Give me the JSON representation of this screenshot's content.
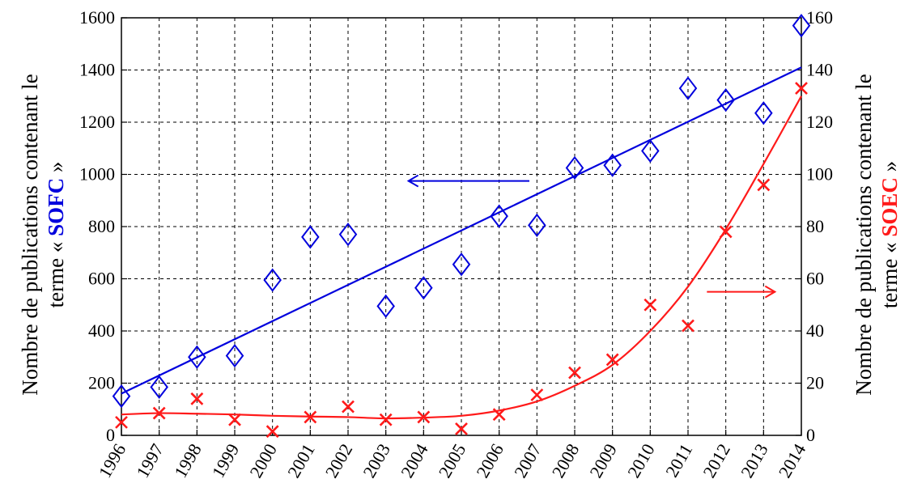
{
  "chart_data": {
    "type": "scatter",
    "x": [
      1996,
      1997,
      1998,
      1999,
      2000,
      2001,
      2002,
      2003,
      2004,
      2005,
      2006,
      2007,
      2008,
      2009,
      2010,
      2011,
      2012,
      2013,
      2014
    ],
    "x_ticks": [
      "1996",
      "1997",
      "1998",
      "1999",
      "2000",
      "2001",
      "2002",
      "2003",
      "2004",
      "2005",
      "2006",
      "2007",
      "2008",
      "2009",
      "2010",
      "2011",
      "2012",
      "2013",
      "2014"
    ],
    "y_left": {
      "range": [
        0,
        1600
      ],
      "ticks": [
        0,
        200,
        400,
        600,
        800,
        1000,
        1200,
        1400,
        1600
      ],
      "label_line1": "Nombre de publications contenant  le",
      "label_pre": "terme « ",
      "label_term": "SOFC",
      "label_post": " »"
    },
    "y_right": {
      "range": [
        0,
        160
      ],
      "ticks": [
        0,
        20,
        40,
        60,
        80,
        100,
        120,
        140,
        160
      ],
      "label_line1": "Nombre de publications contenant  le",
      "label_pre": "terme « ",
      "label_term": "SOEC",
      "label_post": " »"
    },
    "series": [
      {
        "axis": "left",
        "marker": "diamond",
        "color": "#0000dd",
        "values": [
          150,
          185,
          300,
          305,
          595,
          760,
          770,
          495,
          565,
          655,
          840,
          805,
          1025,
          1035,
          1090,
          1330,
          1285,
          1235,
          1570
        ],
        "trend_start": [
          1996,
          160
        ],
        "trend_end": [
          2014,
          1410
        ]
      },
      {
        "axis": "right",
        "marker": "cross",
        "color": "#ff1a1a",
        "values": [
          5,
          8.5,
          14,
          6,
          1.5,
          7,
          11,
          6,
          7,
          2.5,
          8,
          15.5,
          24,
          29,
          50,
          42,
          78,
          96,
          133
        ],
        "trend": [
          [
            1996,
            8
          ],
          [
            1997,
            8.5
          ],
          [
            1998,
            8.3
          ],
          [
            1999,
            8
          ],
          [
            2000,
            7.5
          ],
          [
            2001,
            7.2
          ],
          [
            2002,
            7
          ],
          [
            2003,
            6.5
          ],
          [
            2004,
            6.8
          ],
          [
            2005,
            7.5
          ],
          [
            2006,
            9.5
          ],
          [
            2007,
            13
          ],
          [
            2008,
            19
          ],
          [
            2009,
            27
          ],
          [
            2010,
            40
          ],
          [
            2011,
            57
          ],
          [
            2012,
            79
          ],
          [
            2013,
            104
          ],
          [
            2014,
            130
          ]
        ]
      }
    ],
    "arrows": [
      {
        "color": "#0000dd",
        "direction": "left",
        "x_from": 2006.8,
        "x_to": 2003.6,
        "y_left": 975
      },
      {
        "color": "#ff1a1a",
        "direction": "right",
        "x_from": 2011.5,
        "x_to": 2013.3,
        "y_left": 550
      }
    ],
    "grid": true
  }
}
